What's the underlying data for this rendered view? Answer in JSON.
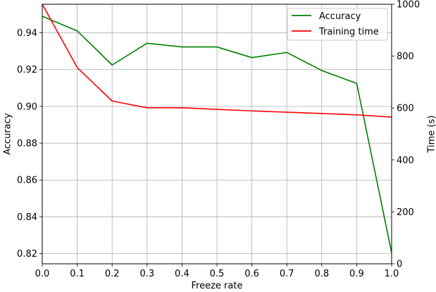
{
  "chart_data": {
    "type": "line",
    "title": "",
    "xlabel": "Freeze rate",
    "ylabel_left": "Accuracy",
    "ylabel_right": "Time (s)",
    "x": [
      0.0,
      0.1,
      0.2,
      0.3,
      0.4,
      0.5,
      0.6,
      0.7,
      0.8,
      0.9,
      1.0
    ],
    "x_ticks": [
      "0.0",
      "0.1",
      "0.2",
      "0.3",
      "0.4",
      "0.5",
      "0.6",
      "0.7",
      "0.8",
      "0.9",
      "1.0"
    ],
    "xlim": [
      0.0,
      1.0
    ],
    "ylim_left": [
      0.8145,
      0.9555
    ],
    "ylim_right": [
      0,
      1000
    ],
    "y_ticks_left": [
      "0.82",
      "0.84",
      "0.86",
      "0.88",
      "0.90",
      "0.92",
      "0.94"
    ],
    "y_tick_values_left": [
      0.82,
      0.84,
      0.86,
      0.88,
      0.9,
      0.92,
      0.94
    ],
    "y_ticks_right": [
      "0",
      "200",
      "400",
      "600",
      "800",
      "1000"
    ],
    "y_tick_values_right": [
      0,
      200,
      400,
      600,
      800,
      1000
    ],
    "grid": true,
    "legend_position": "top-right",
    "series": [
      {
        "name": "Accuracy",
        "axis": "left",
        "color": "#008000",
        "values": [
          0.949,
          0.941,
          0.9225,
          0.9343,
          0.9323,
          0.9323,
          0.9265,
          0.9293,
          0.9195,
          0.9125,
          0.8205
        ]
      },
      {
        "name": "Training time",
        "axis": "right",
        "color": "#ff0000",
        "values": [
          1000,
          756,
          627,
          601,
          601,
          595,
          589,
          584,
          579,
          574,
          565
        ]
      }
    ]
  }
}
